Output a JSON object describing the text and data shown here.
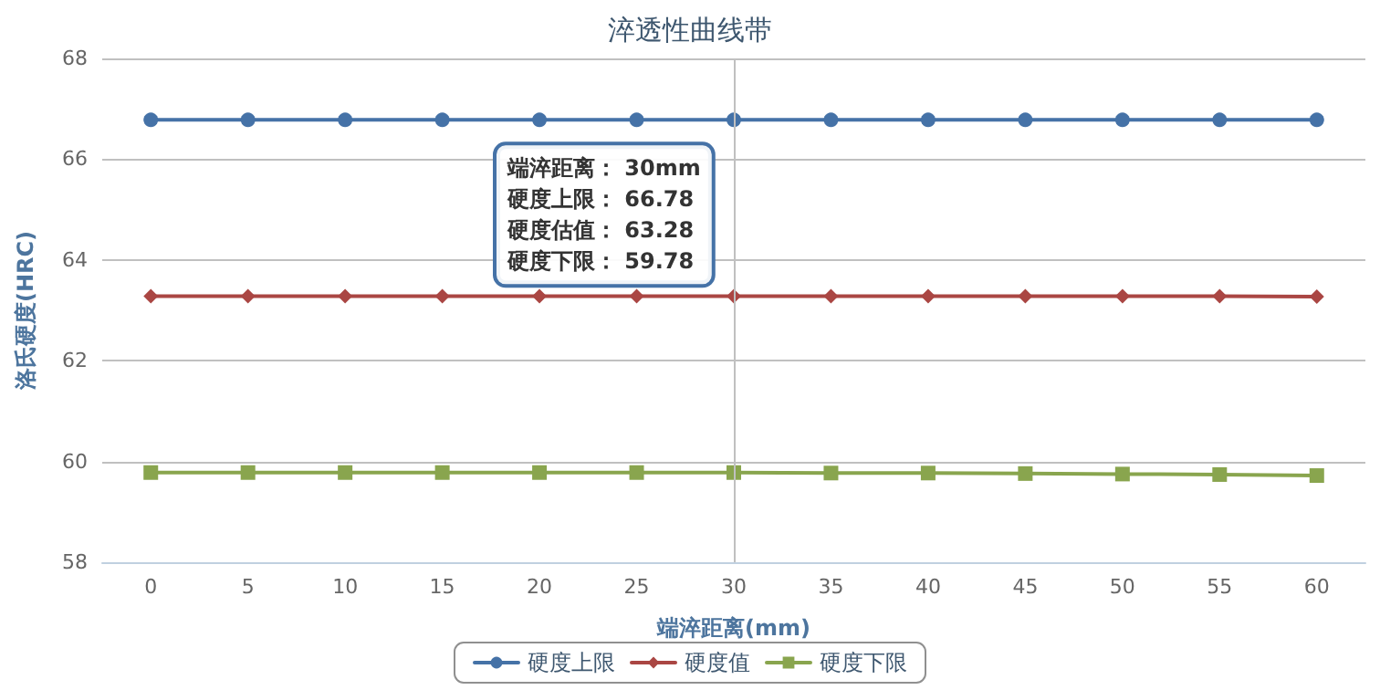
{
  "chart_data": {
    "type": "line",
    "title": "淬透性曲线带",
    "xlabel": "端淬距离(mm)",
    "ylabel": "洛氏硬度(HRC)",
    "x": [
      0,
      5,
      10,
      15,
      20,
      25,
      30,
      35,
      40,
      45,
      50,
      55,
      60
    ],
    "xlim": [
      -2.5,
      62.5
    ],
    "xticks": [
      0,
      5,
      10,
      15,
      20,
      25,
      30,
      35,
      40,
      45,
      50,
      55,
      60
    ],
    "ylim": [
      58,
      68
    ],
    "yticks": [
      58,
      60,
      62,
      64,
      66,
      68
    ],
    "series": [
      {
        "name": "硬度上限",
        "color": "#4572a7",
        "marker": "circle",
        "values": [
          66.78,
          66.78,
          66.78,
          66.78,
          66.78,
          66.78,
          66.78,
          66.78,
          66.78,
          66.78,
          66.78,
          66.78,
          66.78
        ]
      },
      {
        "name": "硬度值",
        "color": "#aa4643",
        "marker": "diamond",
        "values": [
          63.28,
          63.28,
          63.28,
          63.28,
          63.28,
          63.28,
          63.28,
          63.28,
          63.28,
          63.28,
          63.28,
          63.28,
          63.27
        ]
      },
      {
        "name": "硬度下限",
        "color": "#89a54e",
        "marker": "square",
        "values": [
          59.78,
          59.78,
          59.78,
          59.78,
          59.78,
          59.78,
          59.78,
          59.77,
          59.77,
          59.76,
          59.75,
          59.74,
          59.72
        ]
      }
    ],
    "ref_lines": [
      {
        "axis": "x",
        "value": 30,
        "color": "#c0c0c0"
      }
    ],
    "annotations": [
      {
        "text": "端淬距离： 30mm\n硬度上限： 66.78\n硬度估值： 63.28\n硬度下限： 59.78",
        "x": 30,
        "y": 66.78
      }
    ],
    "grid": "y",
    "legend": "bottom",
    "line_style": "solid"
  }
}
